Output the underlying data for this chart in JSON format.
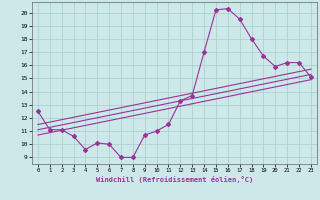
{
  "background_color": "#cce8e8",
  "grid_color": "#aacccc",
  "line_color": "#993399",
  "xlim": [
    -0.5,
    23.5
  ],
  "ylim": [
    8.5,
    20.8
  ],
  "xticks": [
    0,
    1,
    2,
    3,
    4,
    5,
    6,
    7,
    8,
    9,
    10,
    11,
    12,
    13,
    14,
    15,
    16,
    17,
    18,
    19,
    20,
    21,
    22,
    23
  ],
  "yticks": [
    9,
    10,
    11,
    12,
    13,
    14,
    15,
    16,
    17,
    18,
    19,
    20
  ],
  "main_x": [
    0,
    1,
    2,
    3,
    4,
    5,
    6,
    7,
    8,
    9,
    10,
    11,
    12,
    13,
    14,
    15,
    16,
    17,
    18,
    19,
    20,
    21,
    22,
    23
  ],
  "main_y": [
    12.5,
    11.1,
    11.1,
    10.6,
    9.6,
    10.1,
    10.0,
    9.0,
    9.0,
    10.7,
    11.0,
    11.5,
    13.3,
    13.7,
    17.0,
    20.2,
    20.3,
    19.5,
    18.0,
    16.7,
    15.9,
    16.2,
    16.2,
    15.1
  ],
  "trend1_x": [
    0,
    23
  ],
  "trend1_y": [
    10.7,
    14.9
  ],
  "trend2_x": [
    0,
    23
  ],
  "trend2_y": [
    11.1,
    15.3
  ],
  "trend3_x": [
    0,
    23
  ],
  "trend3_y": [
    11.5,
    15.7
  ],
  "xlabel": "Windchill (Refroidissement éolien,°C)"
}
